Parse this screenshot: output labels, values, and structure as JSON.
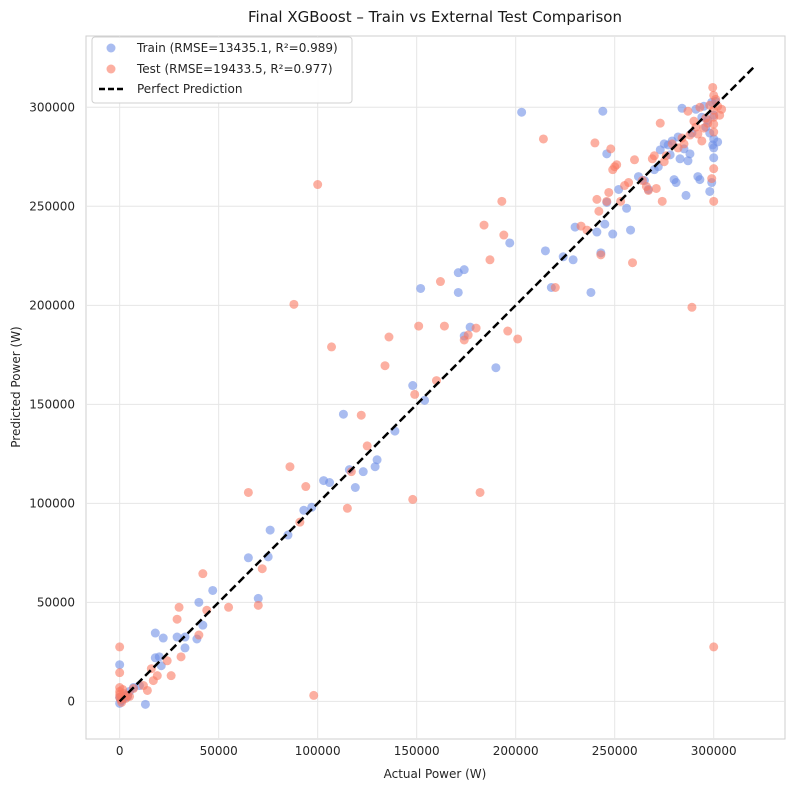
{
  "chart_data": {
    "type": "scatter",
    "title": "Final XGBoost – Train vs External Test Comparison",
    "xlabel": "Actual Power (W)",
    "ylabel": "Predicted Power (W)",
    "xlim": [
      -17000,
      336000
    ],
    "ylim": [
      -19000,
      336000
    ],
    "xticks": [
      0,
      50000,
      100000,
      150000,
      200000,
      250000,
      300000
    ],
    "xtick_labels": [
      "0",
      "50000",
      "100000",
      "150000",
      "200000",
      "250000",
      "300000"
    ],
    "yticks": [
      0,
      50000,
      100000,
      150000,
      200000,
      250000,
      300000
    ],
    "ytick_labels": [
      "0",
      "50000",
      "100000",
      "150000",
      "200000",
      "250000",
      "300000"
    ],
    "grid": true,
    "legend_position": "top-left",
    "series": [
      {
        "name": "Train (RMSE=13435.1, R²=0.989)",
        "color": "#6f8fe6",
        "marker": "circle",
        "points": [
          [
            0,
            18500
          ],
          [
            0,
            2000
          ],
          [
            0,
            -1000
          ],
          [
            1000,
            500
          ],
          [
            2000,
            1500
          ],
          [
            3000,
            3000
          ],
          [
            4000,
            2500
          ],
          [
            5000,
            5000
          ],
          [
            7000,
            7000
          ],
          [
            10000,
            8000
          ],
          [
            13000,
            -1500
          ],
          [
            18000,
            34500
          ],
          [
            18000,
            22000
          ],
          [
            20000,
            22500
          ],
          [
            21000,
            18000
          ],
          [
            22000,
            32000
          ],
          [
            29000,
            32500
          ],
          [
            33000,
            27000
          ],
          [
            33000,
            32500
          ],
          [
            39000,
            31500
          ],
          [
            40000,
            50000
          ],
          [
            42000,
            38500
          ],
          [
            47000,
            56000
          ],
          [
            65000,
            72500
          ],
          [
            70000,
            52000
          ],
          [
            75000,
            73000
          ],
          [
            76000,
            86500
          ],
          [
            85000,
            84000
          ],
          [
            93000,
            96500
          ],
          [
            97000,
            98000
          ],
          [
            103000,
            111500
          ],
          [
            106000,
            110500
          ],
          [
            113000,
            145000
          ],
          [
            116000,
            117000
          ],
          [
            119000,
            108000
          ],
          [
            123000,
            116000
          ],
          [
            129000,
            118500
          ],
          [
            130000,
            122000
          ],
          [
            139000,
            136500
          ],
          [
            148000,
            159500
          ],
          [
            152000,
            208500
          ],
          [
            154000,
            152000
          ],
          [
            171000,
            206500
          ],
          [
            171000,
            216500
          ],
          [
            174000,
            218000
          ],
          [
            174000,
            184500
          ],
          [
            177000,
            189000
          ],
          [
            190000,
            168500
          ],
          [
            197000,
            231500
          ],
          [
            203000,
            297500
          ],
          [
            215000,
            227500
          ],
          [
            218000,
            209000
          ],
          [
            224000,
            224500
          ],
          [
            229000,
            223000
          ],
          [
            230000,
            239500
          ],
          [
            238000,
            206500
          ],
          [
            241000,
            237000
          ],
          [
            243000,
            226500
          ],
          [
            244000,
            298000
          ],
          [
            245000,
            241000
          ],
          [
            246000,
            252000
          ],
          [
            246000,
            276500
          ],
          [
            249000,
            236000
          ],
          [
            252000,
            258500
          ],
          [
            256000,
            249000
          ],
          [
            258000,
            238000
          ],
          [
            262000,
            265000
          ],
          [
            265000,
            263000
          ],
          [
            267000,
            258500
          ],
          [
            270000,
            268500
          ],
          [
            272000,
            270000
          ],
          [
            273000,
            278500
          ],
          [
            275000,
            281500
          ],
          [
            277000,
            281000
          ],
          [
            278000,
            276000
          ],
          [
            279000,
            283000
          ],
          [
            280000,
            263500
          ],
          [
            281000,
            262000
          ],
          [
            282000,
            285000
          ],
          [
            283000,
            274000
          ],
          [
            284000,
            299500
          ],
          [
            285000,
            279000
          ],
          [
            286000,
            255500
          ],
          [
            287000,
            273000
          ],
          [
            288000,
            276500
          ],
          [
            289000,
            287000
          ],
          [
            291000,
            299000
          ],
          [
            292000,
            265000
          ],
          [
            293000,
            263500
          ],
          [
            294000,
            295000
          ],
          [
            295000,
            300500
          ],
          [
            296000,
            290000
          ],
          [
            297000,
            293500
          ],
          [
            298000,
            257500
          ],
          [
            299000,
            302500
          ],
          [
            299500,
            281000
          ],
          [
            300000,
            274500
          ],
          [
            300000,
            284000
          ],
          [
            300000,
            296000
          ],
          [
            300000,
            279500
          ],
          [
            301000,
            303000
          ],
          [
            302000,
            282500
          ],
          [
            299000,
            262000
          ],
          [
            298000,
            287000
          ]
        ]
      },
      {
        "name": "Test (RMSE=19433.5, R²=0.977)",
        "color": "#fa7a62",
        "marker": "circle",
        "points": [
          [
            0,
            27500
          ],
          [
            0,
            14500
          ],
          [
            0,
            7000
          ],
          [
            0,
            5000
          ],
          [
            0,
            3500
          ],
          [
            0,
            2000
          ],
          [
            500,
            1000
          ],
          [
            1000,
            -500
          ],
          [
            1500,
            6000
          ],
          [
            2000,
            4000
          ],
          [
            3000,
            1500
          ],
          [
            4000,
            3000
          ],
          [
            5000,
            2500
          ],
          [
            7000,
            6500
          ],
          [
            12000,
            8000
          ],
          [
            14000,
            5500
          ],
          [
            16000,
            16500
          ],
          [
            17000,
            10500
          ],
          [
            19000,
            13000
          ],
          [
            24000,
            20500
          ],
          [
            26000,
            13000
          ],
          [
            29000,
            41500
          ],
          [
            30000,
            47500
          ],
          [
            31000,
            22500
          ],
          [
            40000,
            33500
          ],
          [
            42000,
            64500
          ],
          [
            44000,
            46000
          ],
          [
            55000,
            47500
          ],
          [
            65000,
            105500
          ],
          [
            70000,
            48500
          ],
          [
            72000,
            67000
          ],
          [
            86000,
            118500
          ],
          [
            88000,
            200500
          ],
          [
            91000,
            90500
          ],
          [
            94000,
            108500
          ],
          [
            98000,
            3000
          ],
          [
            100000,
            261000
          ],
          [
            107000,
            179000
          ],
          [
            115000,
            97500
          ],
          [
            117000,
            116000
          ],
          [
            122000,
            144500
          ],
          [
            125000,
            129000
          ],
          [
            134000,
            169500
          ],
          [
            136000,
            184000
          ],
          [
            148000,
            102000
          ],
          [
            149000,
            155000
          ],
          [
            151000,
            189500
          ],
          [
            160000,
            162000
          ],
          [
            162000,
            212000
          ],
          [
            164000,
            189500
          ],
          [
            174000,
            182500
          ],
          [
            176000,
            185000
          ],
          [
            180000,
            188500
          ],
          [
            182000,
            105500
          ],
          [
            184000,
            240500
          ],
          [
            187000,
            223000
          ],
          [
            193000,
            252500
          ],
          [
            194000,
            235500
          ],
          [
            196000,
            187000
          ],
          [
            201000,
            183000
          ],
          [
            214000,
            284000
          ],
          [
            220000,
            209000
          ],
          [
            233000,
            240000
          ],
          [
            236000,
            238000
          ],
          [
            240000,
            282000
          ],
          [
            241000,
            253500
          ],
          [
            242000,
            247500
          ],
          [
            243000,
            225500
          ],
          [
            246000,
            252500
          ],
          [
            247000,
            257000
          ],
          [
            248000,
            279000
          ],
          [
            249000,
            268500
          ],
          [
            250000,
            270000
          ],
          [
            251000,
            271000
          ],
          [
            253000,
            252500
          ],
          [
            255000,
            260500
          ],
          [
            257000,
            262000
          ],
          [
            259000,
            221500
          ],
          [
            260000,
            273500
          ],
          [
            264000,
            263000
          ],
          [
            266000,
            260000
          ],
          [
            267000,
            258000
          ],
          [
            269000,
            274000
          ],
          [
            270000,
            275500
          ],
          [
            271000,
            259000
          ],
          [
            273000,
            292000
          ],
          [
            274000,
            252500
          ],
          [
            275000,
            272500
          ],
          [
            276000,
            275500
          ],
          [
            279000,
            281500
          ],
          [
            282000,
            279500
          ],
          [
            284000,
            284500
          ],
          [
            285000,
            281500
          ],
          [
            287000,
            298000
          ],
          [
            288000,
            286000
          ],
          [
            289000,
            199000
          ],
          [
            290000,
            293000
          ],
          [
            291000,
            290000
          ],
          [
            292000,
            286500
          ],
          [
            293000,
            300000
          ],
          [
            294000,
            283000
          ],
          [
            295000,
            289500
          ],
          [
            296000,
            294500
          ],
          [
            297000,
            292000
          ],
          [
            298000,
            301000
          ],
          [
            299000,
            264000
          ],
          [
            299500,
            310000
          ],
          [
            300000,
            306000
          ],
          [
            300000,
            298500
          ],
          [
            300000,
            295000
          ],
          [
            300000,
            291500
          ],
          [
            300000,
            287500
          ],
          [
            300000,
            252500
          ],
          [
            300000,
            27500
          ],
          [
            300000,
            269000
          ],
          [
            301000,
            304000
          ],
          [
            302000,
            300500
          ],
          [
            303000,
            296000
          ],
          [
            304000,
            299000
          ]
        ]
      },
      {
        "name": "Perfect Prediction",
        "color": "#000000",
        "marker": "dashed-line",
        "points": [
          [
            0,
            0
          ],
          [
            320000,
            320000
          ]
        ]
      }
    ]
  }
}
